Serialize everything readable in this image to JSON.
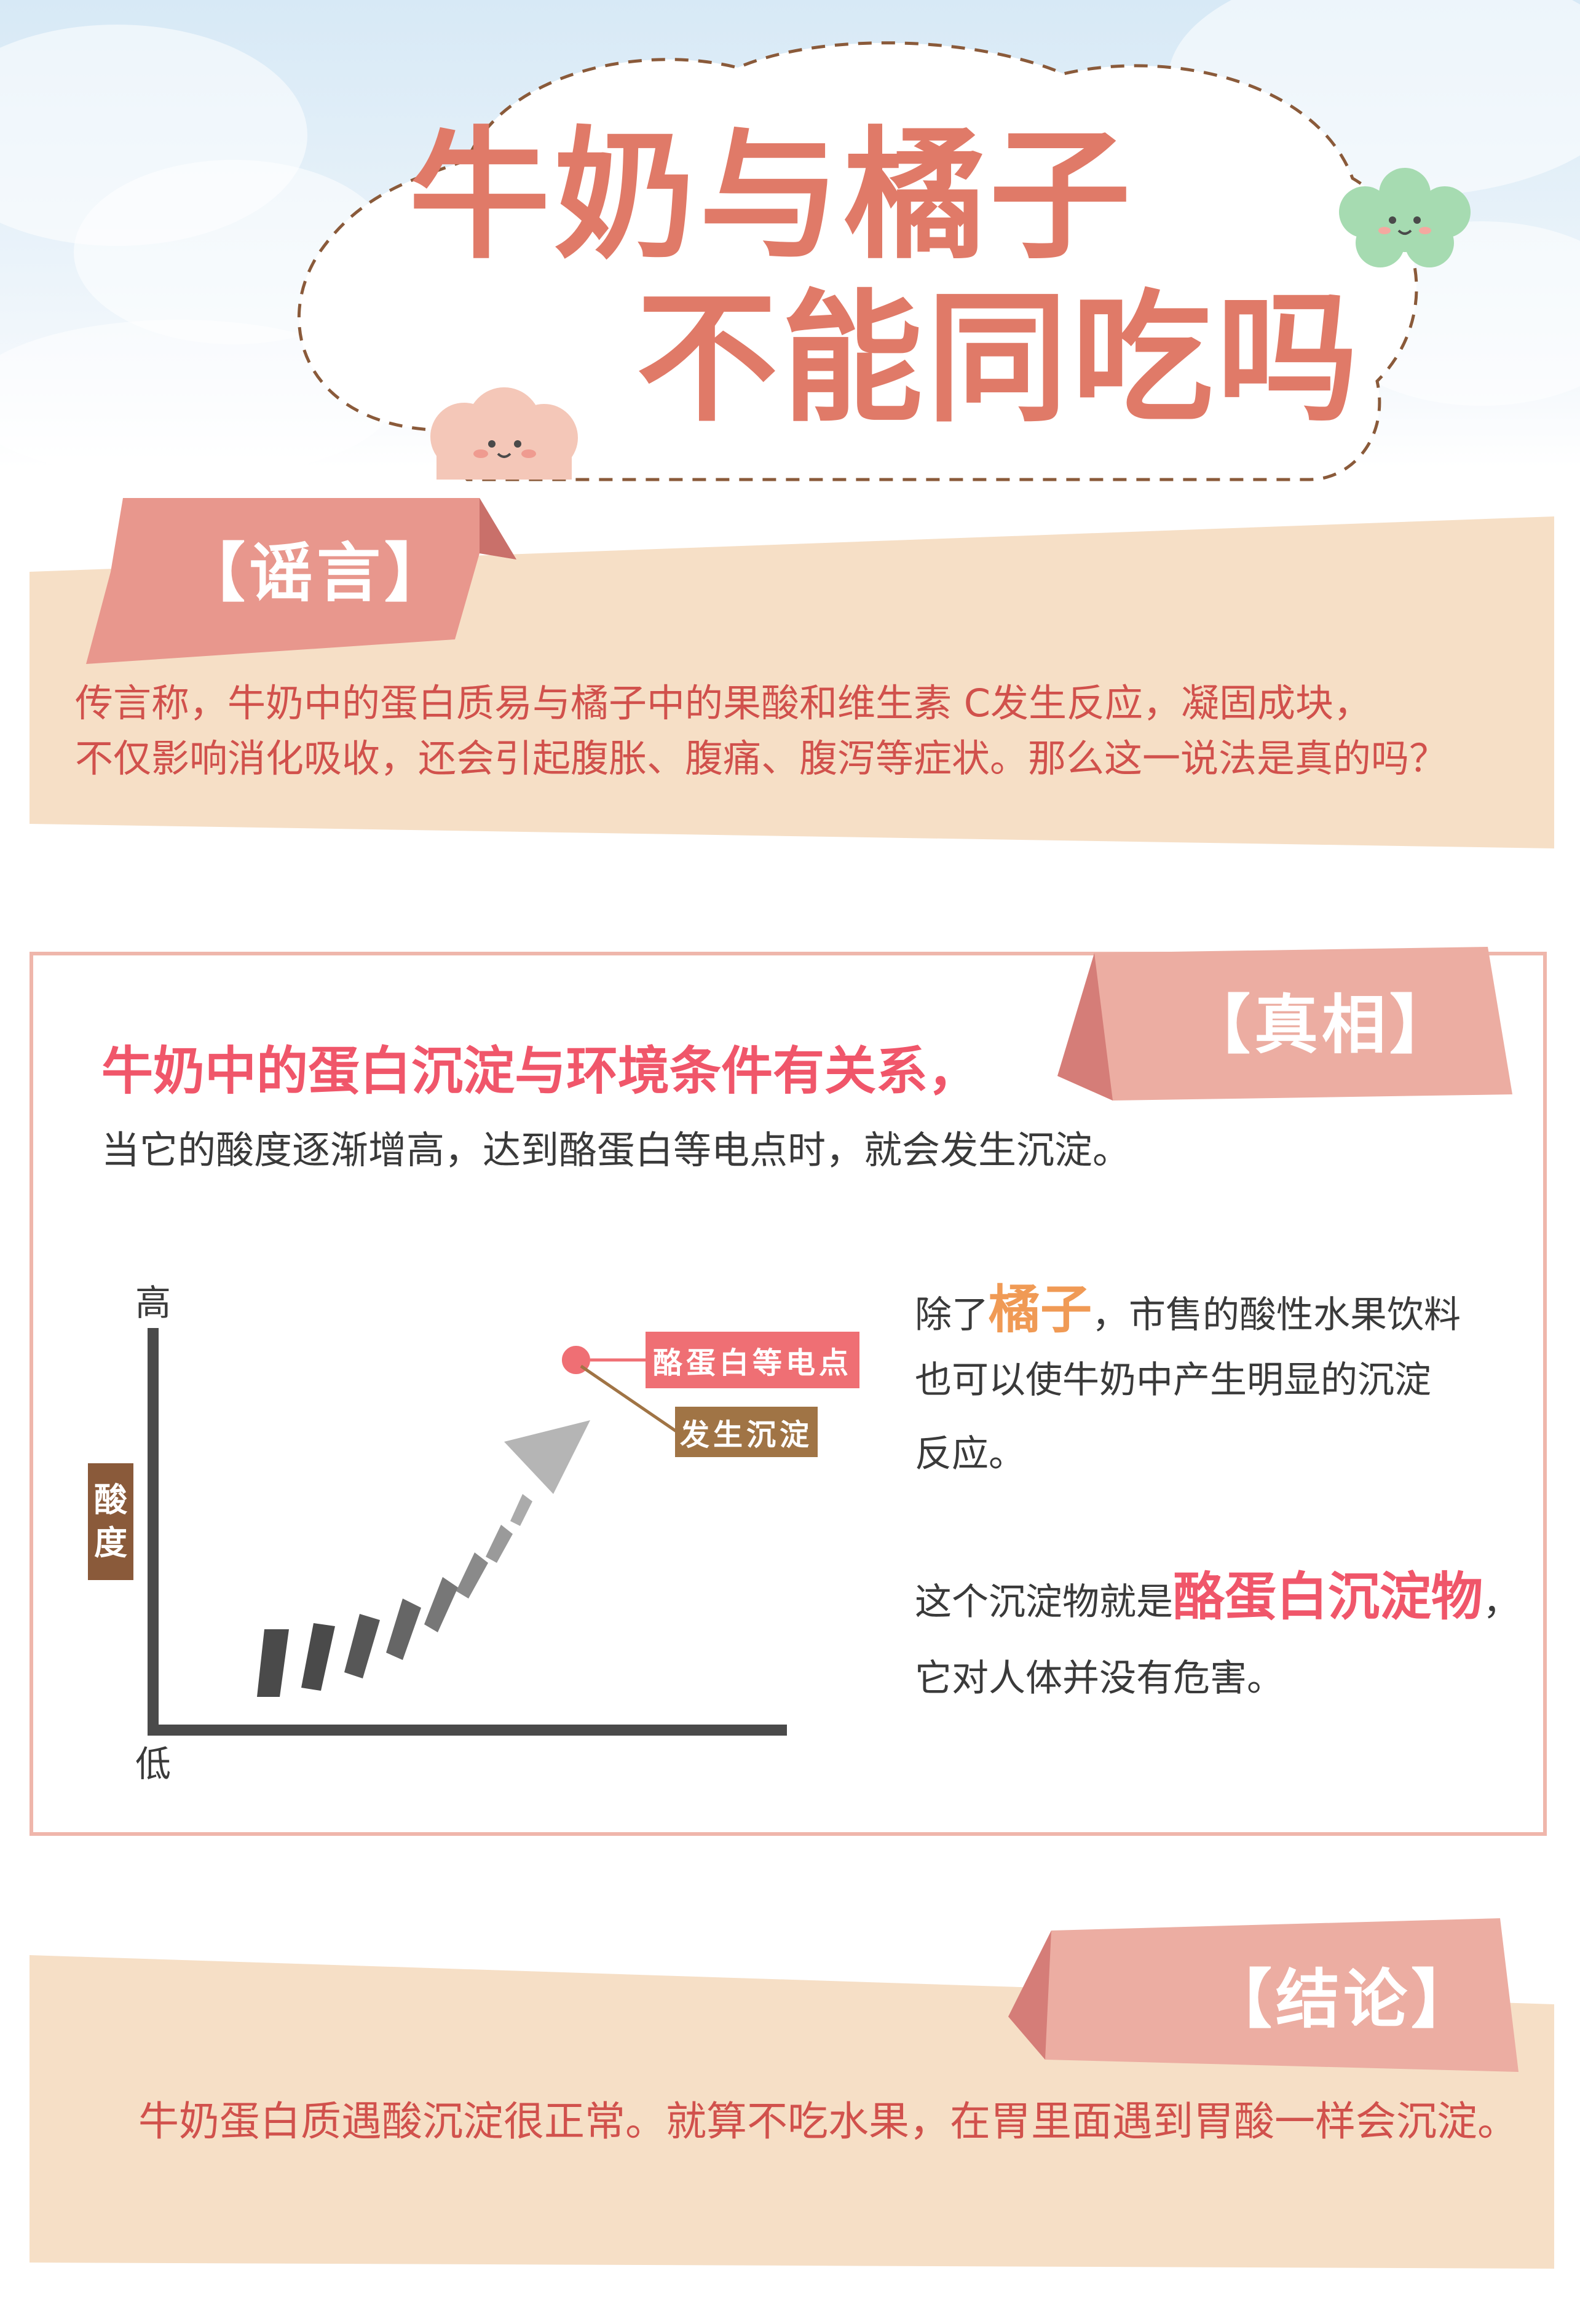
{
  "header": {
    "title_line1": "牛奶与橘子",
    "title_line2": "不能同吃吗"
  },
  "rumor": {
    "tag": "【谣言】",
    "line1": "传言称，牛奶中的蛋白质易与橘子中的果酸和维生素 C发生反应，凝固成块，",
    "line2": "不仅影响消化吸收，还会引起腹胀、腹痛、腹泻等症状。那么这一说法是真的吗？"
  },
  "truth": {
    "tag": "【真相】",
    "headline": "牛奶中的蛋白沉淀与环境条件有关系，",
    "subline": "当它的酸度逐渐增高，达到酪蛋白等电点时，就会发生沉淀。",
    "diagram": {
      "axis_high": "高",
      "axis_low": "低",
      "axis_label_1": "酸",
      "axis_label_2": "度",
      "callout_point": "酪蛋白等电点",
      "callout_precipitate": "发生沉淀"
    },
    "side": {
      "p1_prefix": "除了",
      "p1_highlight": "橘子",
      "p1_suffix": "，市售的酸性水果饮料",
      "p1_line2": "也可以使牛奶中产生明显的沉淀",
      "p1_line3": "反应。",
      "p2_prefix": "这个沉淀物就是",
      "p2_highlight": "酪蛋白沉淀物",
      "p2_suffix": "，",
      "p2_line2": "它对人体并没有危害。"
    }
  },
  "conclusion": {
    "tag": "【结论】",
    "text": "牛奶蛋白质遇酸沉淀很正常。就算不吃水果，在胃里面遇到胃酸一样会沉淀。"
  },
  "colors": {
    "title": "#e07a68",
    "tag_pink": "#e8978d",
    "panel_beige": "#f6dfc6",
    "body_red": "#d1514c",
    "highlight_pink": "#f0566a",
    "highlight_orange": "#f09a55",
    "frame_border": "#efb6ab"
  }
}
